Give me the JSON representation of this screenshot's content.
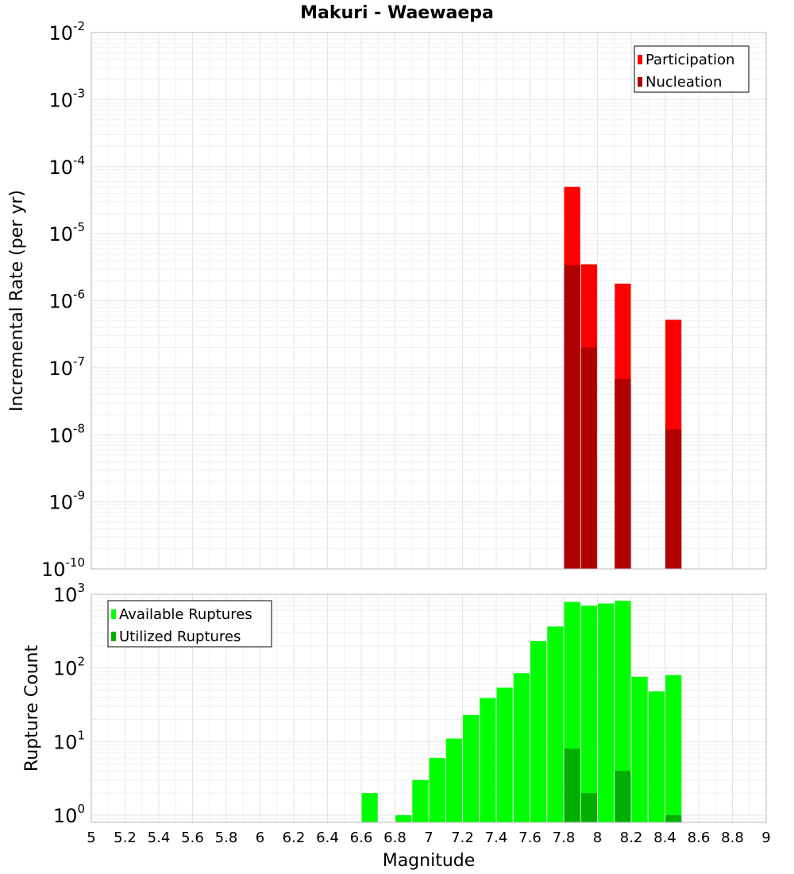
{
  "chart_data": [
    {
      "type": "bar",
      "title": "Makuri - Waewaepa",
      "xlabel": "Magnitude",
      "ylabel": "Incremental Rate (per yr)",
      "xlim": [
        5,
        9
      ],
      "ylim": [
        1e-10,
        0.01
      ],
      "yscale": "log",
      "grid": true,
      "bar_width": 0.095,
      "legend": {
        "placement": "top-right",
        "entries": [
          "Participation",
          "Nucleation"
        ]
      },
      "x_ticks": [
        "5",
        "5.2",
        "5.4",
        "5.6",
        "5.8",
        "6",
        "6.2",
        "6.4",
        "6.6",
        "6.8",
        "7",
        "7.2",
        "7.4",
        "7.6",
        "7.8",
        "8",
        "8.2",
        "8.4",
        "8.6",
        "8.8",
        "9"
      ],
      "y_tick_exponents": [
        "-10",
        "-9",
        "-8",
        "-7",
        "-6",
        "-5",
        "-4",
        "-3",
        "-2"
      ],
      "series": [
        {
          "name": "Participation",
          "color": "#ff0000",
          "points": [
            {
              "x": 7.85,
              "y": 5e-05
            },
            {
              "x": 7.95,
              "y": 3.5e-06
            },
            {
              "x": 8.15,
              "y": 1.8e-06
            },
            {
              "x": 8.45,
              "y": 5.2e-07
            }
          ]
        },
        {
          "name": "Nucleation",
          "color": "#b00000",
          "points": [
            {
              "x": 7.85,
              "y": 3.4e-06
            },
            {
              "x": 7.95,
              "y": 2e-07
            },
            {
              "x": 8.15,
              "y": 6.8e-08
            },
            {
              "x": 8.45,
              "y": 1.2e-08
            }
          ]
        }
      ]
    },
    {
      "type": "bar",
      "title": "",
      "xlabel": "Magnitude",
      "ylabel": "Rupture Count",
      "xlim": [
        5,
        9
      ],
      "ylim": [
        0.8,
        1000
      ],
      "yscale": "log",
      "grid": true,
      "bar_width": 0.095,
      "legend": {
        "placement": "top-left",
        "entries": [
          "Available Ruptures",
          "Utilized Ruptures"
        ]
      },
      "x_ticks": [
        "5",
        "5.2",
        "5.4",
        "5.6",
        "5.8",
        "6",
        "6.2",
        "6.4",
        "6.6",
        "6.8",
        "7",
        "7.2",
        "7.4",
        "7.6",
        "7.8",
        "8",
        "8.2",
        "8.4",
        "8.6",
        "8.8",
        "9"
      ],
      "y_tick_exponents": [
        "0",
        "1",
        "2",
        "3"
      ],
      "series": [
        {
          "name": "Available Ruptures",
          "color": "#00ff00",
          "points": [
            {
              "x": 6.65,
              "y": 2
            },
            {
              "x": 6.85,
              "y": 1
            },
            {
              "x": 6.95,
              "y": 3
            },
            {
              "x": 7.05,
              "y": 6
            },
            {
              "x": 7.15,
              "y": 11
            },
            {
              "x": 7.25,
              "y": 23
            },
            {
              "x": 7.35,
              "y": 39
            },
            {
              "x": 7.45,
              "y": 54
            },
            {
              "x": 7.55,
              "y": 85
            },
            {
              "x": 7.65,
              "y": 231
            },
            {
              "x": 7.75,
              "y": 366
            },
            {
              "x": 7.85,
              "y": 789
            },
            {
              "x": 7.95,
              "y": 702
            },
            {
              "x": 8.05,
              "y": 751
            },
            {
              "x": 8.15,
              "y": 817
            },
            {
              "x": 8.25,
              "y": 76
            },
            {
              "x": 8.35,
              "y": 48
            },
            {
              "x": 8.45,
              "y": 80
            }
          ]
        },
        {
          "name": "Utilized Ruptures",
          "color": "#00b000",
          "points": [
            {
              "x": 7.85,
              "y": 8
            },
            {
              "x": 7.95,
              "y": 2
            },
            {
              "x": 8.15,
              "y": 4
            },
            {
              "x": 8.45,
              "y": 1
            }
          ]
        }
      ]
    }
  ]
}
